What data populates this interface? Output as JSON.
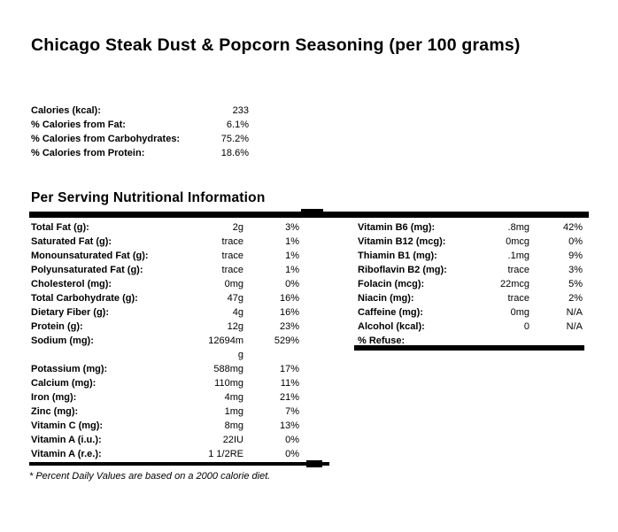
{
  "page": {
    "title": "Chicago Steak Dust & Popcorn Seasoning (per 100 grams)"
  },
  "colors": {
    "text": "#000000",
    "background": "#ffffff",
    "divider": "#000000"
  },
  "summary": {
    "rows": [
      {
        "label": "Calories (kcal):",
        "value": "233"
      },
      {
        "label": "% Calories from Fat:",
        "value": "6.1%"
      },
      {
        "label": "% Calories from Carbohydrates:",
        "value": "75.2%"
      },
      {
        "label": "% Calories from Protein:",
        "value": "18.6%"
      }
    ]
  },
  "per_serving": {
    "heading": "Per Serving Nutritional Information",
    "left_column": [
      {
        "label": "Total Fat (g):",
        "value": "2g",
        "dv": "3%"
      },
      {
        "label": "Saturated Fat (g):",
        "value": "trace",
        "dv": "1%"
      },
      {
        "label": "Monounsaturated Fat (g):",
        "value": "trace",
        "dv": "1%"
      },
      {
        "label": "Polyunsaturated Fat (g):",
        "value": "trace",
        "dv": "1%"
      },
      {
        "label": "Cholesterol (mg):",
        "value": "0mg",
        "dv": "0%"
      },
      {
        "label": "Total Carbohydrate (g):",
        "value": "47g",
        "dv": "16%"
      },
      {
        "label": "Dietary Fiber (g):",
        "value": "4g",
        "dv": "16%"
      },
      {
        "label": "Protein (g):",
        "value": "12g",
        "dv": "23%"
      },
      {
        "label": "Sodium (mg):",
        "value": "12694mg",
        "dv": "529%"
      },
      {
        "label": "Potassium (mg):",
        "value": "588mg",
        "dv": "17%"
      },
      {
        "label": "Calcium (mg):",
        "value": "110mg",
        "dv": "11%"
      },
      {
        "label": "Iron (mg):",
        "value": "4mg",
        "dv": "21%"
      },
      {
        "label": "Zinc (mg):",
        "value": "1mg",
        "dv": "7%"
      },
      {
        "label": "Vitamin C (mg):",
        "value": "8mg",
        "dv": "13%"
      },
      {
        "label": "Vitamin A (i.u.):",
        "value": "22IU",
        "dv": "0%"
      },
      {
        "label": "Vitamin A (r.e.):",
        "value": "1 1/2RE",
        "dv": "0%"
      }
    ],
    "right_column": [
      {
        "label": "Vitamin B6 (mg):",
        "value": ".8mg",
        "dv": "42%"
      },
      {
        "label": "Vitamin B12 (mcg):",
        "value": "0mcg",
        "dv": "0%"
      },
      {
        "label": "Thiamin B1 (mg):",
        "value": ".1mg",
        "dv": "9%"
      },
      {
        "label": "Riboflavin B2 (mg):",
        "value": "trace",
        "dv": "3%"
      },
      {
        "label": "Folacin (mcg):",
        "value": "22mcg",
        "dv": "5%"
      },
      {
        "label": "Niacin (mg):",
        "value": "trace",
        "dv": "2%"
      },
      {
        "label": "Caffeine (mg):",
        "value": "0mg",
        "dv": "N/A"
      },
      {
        "label": "Alcohol (kcal):",
        "value": "0",
        "dv": "N/A"
      },
      {
        "label": "% Refuse:",
        "value": "",
        "dv": ""
      }
    ],
    "footnote": "* Percent Daily Values are based on a 2000 calorie diet."
  }
}
